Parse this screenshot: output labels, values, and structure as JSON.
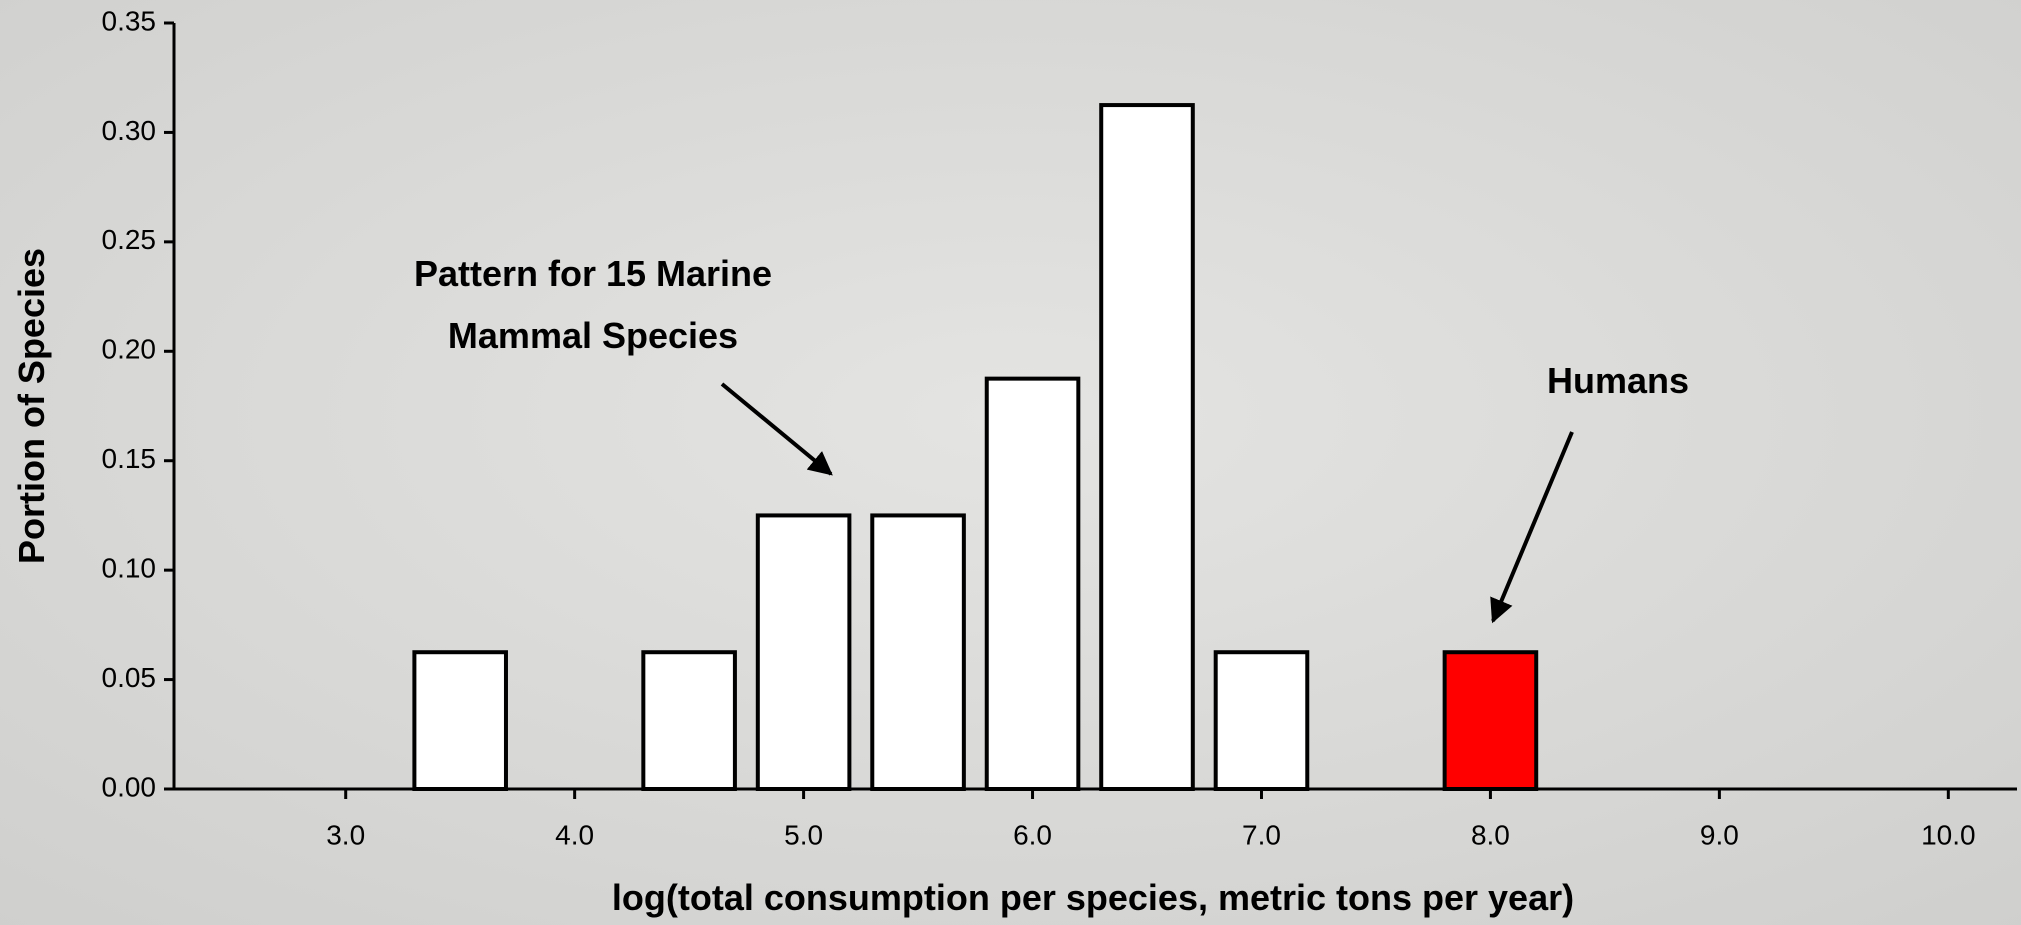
{
  "chart_data": {
    "type": "bar",
    "x_label": "log(total consumption per species, metric tons per year)",
    "y_label": "Portion of Species",
    "series": [
      {
        "color": "#ffffff",
        "x": [
          3.5,
          4.5,
          5.0,
          5.5,
          6.0,
          6.5,
          7.0
        ],
        "values": [
          0.0625,
          0.0625,
          0.125,
          0.125,
          0.1875,
          0.3125,
          0.0625
        ]
      },
      {
        "color": "#ff0000",
        "x": [
          8.0
        ],
        "values": [
          0.0625
        ]
      }
    ],
    "annotations": [
      {
        "lines": [
          "Pattern for 15 Marine",
          "Mammal Species"
        ]
      },
      {
        "lines": [
          "Humans"
        ]
      }
    ],
    "xlim": [
      2.25,
      10.3
    ],
    "xticks": [
      {
        "value": 3,
        "label": "3.0"
      },
      {
        "value": 4,
        "label": "4.0"
      },
      {
        "value": 5,
        "label": "5.0"
      },
      {
        "value": 6,
        "label": "6.0"
      },
      {
        "value": 7,
        "label": "7.0"
      },
      {
        "value": 8,
        "label": "8.0"
      },
      {
        "value": 9,
        "label": "9.0"
      },
      {
        "value": 10,
        "label": "10.0"
      }
    ],
    "ylim": [
      0,
      0.35
    ],
    "yticks": [
      {
        "value": 0,
        "label": "0.00"
      },
      {
        "value": 0.05,
        "label": "0.05"
      },
      {
        "value": 0.1,
        "label": "0.10"
      },
      {
        "value": 0.15,
        "label": "0.15"
      },
      {
        "value": 0.2,
        "label": "0.20"
      },
      {
        "value": 0.25,
        "label": "0.25"
      },
      {
        "value": 0.3,
        "label": "0.30"
      },
      {
        "value": 0.35,
        "label": "0.35"
      }
    ]
  }
}
